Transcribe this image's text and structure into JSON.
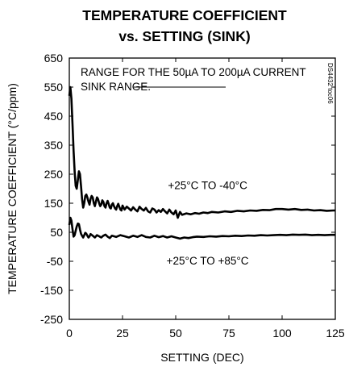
{
  "chart_data": {
    "type": "line",
    "title": [
      "TEMPERATURE COEFFICIENT",
      "vs. SETTING (SINK)"
    ],
    "xlabel": "SETTING (DEC)",
    "ylabel": "TEMPERATURE COEFFICIENT (°C/ppm)",
    "xlim": [
      0,
      125
    ],
    "ylim": [
      -250,
      650
    ],
    "xticks": [
      0,
      25,
      50,
      75,
      100,
      125
    ],
    "yticks": [
      650,
      550,
      450,
      350,
      250,
      150,
      50,
      -50,
      -150,
      -250
    ],
    "grid": false,
    "annotation": [
      "RANGE FOR THE 50µA TO 200µA CURRENT",
      "SINK RANGE."
    ],
    "side_tag": "DS4432 toc06",
    "series": [
      {
        "name": "+25°C TO -40°C",
        "color": "#000000",
        "x": [
          0,
          0.5,
          1,
          1.5,
          2,
          2.5,
          3,
          3.5,
          4,
          4.5,
          5,
          5.5,
          6,
          6.5,
          7,
          7.5,
          8,
          8.5,
          9,
          9.5,
          10,
          10.5,
          11,
          11.5,
          12,
          12.5,
          13,
          13.5,
          14,
          14.5,
          15,
          15.5,
          16,
          16.5,
          17,
          17.5,
          18,
          18.5,
          19,
          19.5,
          20,
          20.5,
          21,
          21.5,
          22,
          22.5,
          23,
          23.5,
          24,
          24.5,
          25,
          26,
          27,
          28,
          29,
          30,
          31,
          32,
          33,
          34,
          35,
          36,
          37,
          38,
          39,
          40,
          41,
          42,
          43,
          44,
          45,
          46,
          47,
          48,
          49,
          50,
          51,
          52,
          53,
          55,
          57,
          59,
          61,
          63,
          65,
          67,
          70,
          73,
          76,
          79,
          82,
          85,
          88,
          91,
          94,
          97,
          100,
          103,
          106,
          109,
          112,
          115,
          118,
          121,
          124,
          125
        ],
        "values": [
          520,
          550,
          510,
          420,
          330,
          260,
          210,
          200,
          230,
          260,
          250,
          210,
          165,
          135,
          150,
          175,
          180,
          170,
          155,
          145,
          165,
          175,
          170,
          150,
          140,
          155,
          170,
          165,
          150,
          140,
          145,
          160,
          155,
          140,
          135,
          150,
          158,
          148,
          135,
          132,
          145,
          150,
          140,
          132,
          128,
          140,
          148,
          138,
          128,
          125,
          142,
          128,
          138,
          132,
          125,
          136,
          128,
          122,
          138,
          130,
          125,
          134,
          122,
          118,
          132,
          128,
          118,
          126,
          120,
          130,
          122,
          115,
          128,
          118,
          112,
          125,
          100,
          120,
          110,
          115,
          112,
          116,
          114,
          118,
          116,
          120,
          118,
          122,
          120,
          124,
          122,
          125,
          124,
          127,
          126,
          130,
          130,
          128,
          130,
          127,
          128,
          125,
          126,
          124,
          125,
          125
        ]
      },
      {
        "name": "+25°C TO +85°C",
        "color": "#000000",
        "x": [
          0,
          0.5,
          1,
          1.5,
          2,
          2.5,
          3,
          3.5,
          4,
          4.5,
          5,
          5.5,
          6,
          6.5,
          7,
          7.5,
          8,
          8.5,
          9,
          9.5,
          10,
          11,
          12,
          13,
          14,
          15,
          16,
          17,
          18,
          19,
          20,
          22,
          24,
          26,
          28,
          30,
          32,
          34,
          36,
          38,
          40,
          42,
          44,
          46,
          48,
          50,
          52,
          54,
          56,
          58,
          60,
          63,
          66,
          69,
          72,
          75,
          78,
          81,
          84,
          87,
          90,
          93,
          96,
          99,
          102,
          105,
          108,
          111,
          114,
          117,
          120,
          123,
          125
        ],
        "values": [
          75,
          100,
          90,
          60,
          35,
          40,
          55,
          70,
          80,
          78,
          60,
          45,
          38,
          32,
          40,
          48,
          45,
          38,
          32,
          36,
          44,
          38,
          32,
          40,
          36,
          32,
          38,
          42,
          35,
          30,
          38,
          34,
          40,
          36,
          32,
          38,
          34,
          40,
          34,
          32,
          38,
          33,
          37,
          32,
          36,
          32,
          28,
          32,
          30,
          33,
          35,
          34,
          36,
          35,
          37,
          36,
          38,
          37,
          39,
          38,
          40,
          39,
          40,
          41,
          40,
          42,
          41,
          42,
          40,
          41,
          40,
          41,
          41
        ]
      }
    ],
    "series_labels": [
      {
        "text": "+25°C TO -40°C",
        "at": [
          65,
          165
        ]
      },
      {
        "text": "+25°C TO +85°C",
        "at": [
          65,
          0
        ]
      }
    ]
  }
}
